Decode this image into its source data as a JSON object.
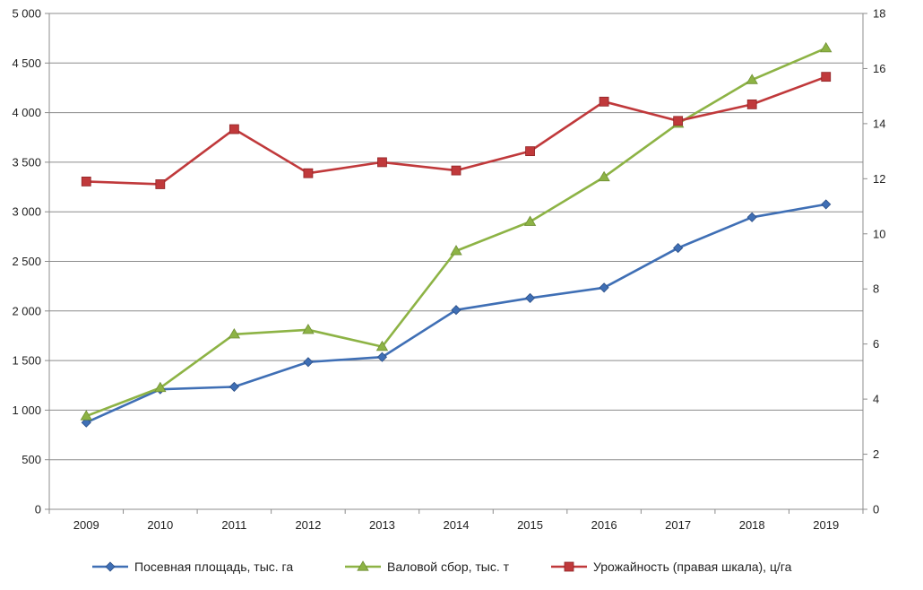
{
  "chart_data": {
    "type": "line",
    "categories": [
      "2009",
      "2010",
      "2011",
      "2012",
      "2013",
      "2014",
      "2015",
      "2016",
      "2017",
      "2018",
      "2019"
    ],
    "y_left": {
      "min": 0,
      "max": 5000,
      "step": 500,
      "tick_labels": [
        "0",
        "500",
        "1 000",
        "1 500",
        "2 000",
        "2 500",
        "3 000",
        "3 500",
        "4 000",
        "4 500",
        "5 000"
      ]
    },
    "y_right": {
      "min": 0,
      "max": 18,
      "step": 2,
      "tick_labels": [
        "0",
        "2",
        "4",
        "6",
        "8",
        "10",
        "12",
        "14",
        "16",
        "18"
      ]
    },
    "grid": true,
    "legend_position": "bottom",
    "series": [
      {
        "name": "Посевная площадь, тыс. га",
        "axis": "left",
        "marker": "diamond",
        "color": "#3F6FB5",
        "values": [
          875,
          1210,
          1235,
          1485,
          1535,
          2010,
          2130,
          2235,
          2635,
          2945,
          3075
        ]
      },
      {
        "name": "Валовой сбор, тыс. т",
        "axis": "left",
        "marker": "triangle",
        "color": "#8DB345",
        "values": [
          940,
          1225,
          1765,
          1810,
          1640,
          2605,
          2900,
          3350,
          3890,
          4330,
          4650
        ]
      },
      {
        "name": "Урожайность (правая шкала), ц/га",
        "axis": "right",
        "marker": "square",
        "color": "#C0393B",
        "values": [
          11.9,
          11.8,
          13.8,
          12.2,
          12.6,
          12.3,
          13.0,
          14.8,
          14.1,
          14.7,
          15.7
        ]
      }
    ]
  }
}
